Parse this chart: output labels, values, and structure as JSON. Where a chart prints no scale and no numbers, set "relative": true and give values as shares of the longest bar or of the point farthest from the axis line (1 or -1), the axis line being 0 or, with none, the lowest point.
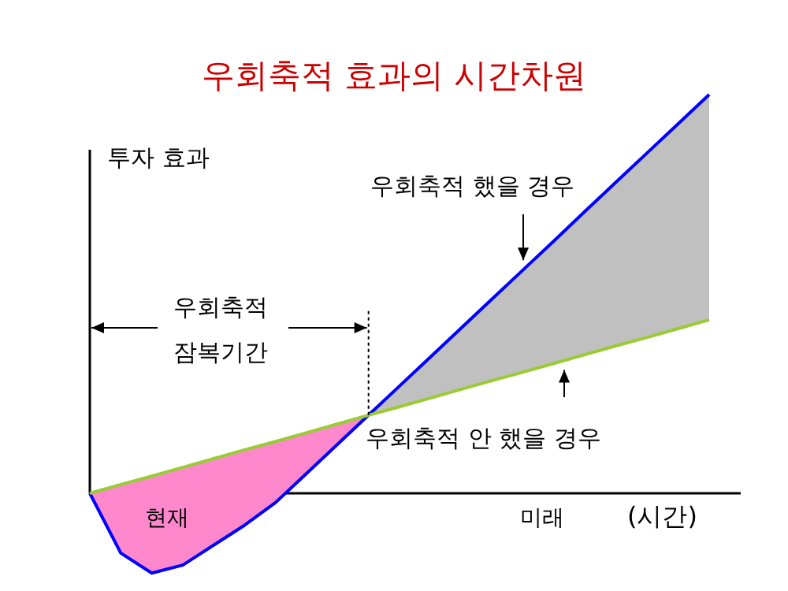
{
  "chart_data": {
    "type": "line",
    "title": "우회축적 효과의 시간차원",
    "xlabel": "(시간)",
    "ylabel": "투자 효과",
    "relative": true,
    "categories": [
      null,
      null,
      null,
      null,
      null,
      null,
      null,
      null,
      null,
      null,
      null,
      null,
      null,
      null,
      null,
      null,
      null,
      null,
      null,
      null,
      null
    ],
    "series": [
      {
        "color": "#0000ff",
        "colors": [
          null,
          null,
          null,
          null,
          null,
          null,
          null,
          null,
          null,
          "#c0c0c0",
          "#c0c0c0",
          "#c0c0c0",
          "#c0c0c0",
          "#c0c0c0",
          "#c0c0c0",
          "#c0c0c0",
          "#c0c0c0",
          "#c0c0c0",
          "#c0c0c0",
          "#c0c0c0",
          "#c0c0c0"
        ],
        "values": [
          0,
          -0.15,
          -0.2,
          -0.18,
          -0.13,
          -0.08,
          -0.023,
          0.05,
          0.123,
          0.196,
          0.269,
          0.342,
          0.415,
          0.488,
          0.561,
          0.634,
          0.708,
          0.781,
          0.854,
          0.927,
          1.0
        ],
        "lower": [
          null,
          null,
          null,
          null,
          null,
          null,
          null,
          null,
          null,
          0.196,
          0.217,
          0.239,
          0.261,
          0.283,
          0.304,
          0.326,
          0.348,
          0.37,
          0.391,
          0.413,
          0.435
        ],
        "upper": [
          null,
          null,
          null,
          null,
          null,
          null,
          null,
          null,
          null,
          0.196,
          0.269,
          0.342,
          0.415,
          0.488,
          0.561,
          0.634,
          0.708,
          0.781,
          0.854,
          0.927,
          1.0
        ]
      },
      {
        "color": "#99cc33",
        "colors": [
          "#ff88cc",
          "#ff88cc",
          "#ff88cc",
          "#ff88cc",
          "#ff88cc",
          "#ff88cc",
          "#ff88cc",
          "#ff88cc",
          "#ff88cc",
          "#ff88cc",
          null,
          null,
          null,
          null,
          null,
          null,
          null,
          null,
          null,
          null,
          null
        ],
        "values": [
          0,
          0.022,
          0.043,
          0.065,
          0.087,
          0.109,
          0.13,
          0.152,
          0.174,
          0.196,
          0.217,
          0.239,
          0.261,
          0.283,
          0.304,
          0.326,
          0.348,
          0.37,
          0.391,
          0.413,
          0.435
        ],
        "lower": [
          0,
          -0.15,
          -0.2,
          -0.18,
          -0.13,
          -0.08,
          -0.023,
          0.05,
          0.123,
          0.196,
          null,
          null,
          null,
          null,
          null,
          null,
          null,
          null,
          null,
          null,
          null
        ],
        "upper": [
          0,
          0.022,
          0.043,
          0.065,
          0.087,
          0.109,
          0.13,
          0.152,
          0.174,
          0.196,
          null,
          null,
          null,
          null,
          null,
          null,
          null,
          null,
          null,
          null,
          null
        ]
      }
    ],
    "annotations": [
      "우회축적 했을 경우",
      "우회축적\n잠복기간",
      "우회축적 안 했을 경우",
      "현재",
      "미래"
    ]
  }
}
